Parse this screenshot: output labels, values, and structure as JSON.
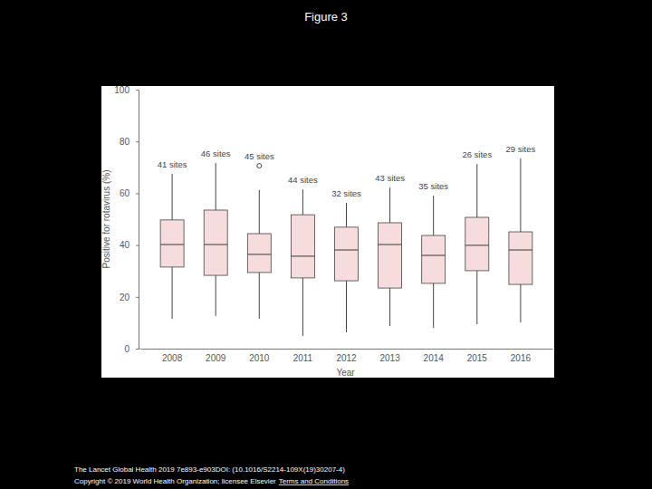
{
  "chart_data": {
    "type": "box",
    "title": "Figure 3",
    "x_label": "Year",
    "y_label": "Positive for rotavirus (%)",
    "categories": [
      "2008",
      "2009",
      "2010",
      "2011",
      "2012",
      "2013",
      "2014",
      "2015",
      "2016"
    ],
    "whisker_low": [
      11.5,
      12.6,
      11.5,
      4.9,
      6.3,
      8.7,
      8.0,
      9.4,
      10.1
    ],
    "q1": [
      31.5,
      28.3,
      29.4,
      27.3,
      26.2,
      23.4,
      25.2,
      30.1,
      24.8
    ],
    "median": [
      40.2,
      40.2,
      36.4,
      35.7,
      38.1,
      40.2,
      36.0,
      39.9,
      38.1
    ],
    "q3": [
      49.7,
      53.5,
      44.4,
      51.7,
      46.9,
      48.6,
      43.7,
      50.7,
      45.1
    ],
    "whisker_high": [
      67.5,
      71.7,
      61.2,
      61.5,
      56.3,
      62.2,
      59.1,
      71.3,
      73.4
    ],
    "outliers": [
      [],
      [],
      [
        70.6
      ],
      [],
      [],
      [],
      [],
      [],
      []
    ],
    "annotations": [
      "41 sites",
      "46 sites",
      "45 sites",
      "44 sites",
      "32 sites",
      "43 sites",
      "35 sites",
      "26 sites",
      "29 sites"
    ],
    "color": "#f6dcdc",
    "ylim": [
      0,
      100
    ],
    "yticks": [
      0,
      20,
      40,
      60,
      80,
      100
    ],
    "grid": false,
    "footnotes": [
      "The Lancet Global Health 2019 7e893-e903DOI: (10.1016/S2214-109X(19)30207-4)",
      "Copyright © 2019 World Health Organization; licensee Elsevier"
    ],
    "link_text": "Terms and Conditions"
  }
}
